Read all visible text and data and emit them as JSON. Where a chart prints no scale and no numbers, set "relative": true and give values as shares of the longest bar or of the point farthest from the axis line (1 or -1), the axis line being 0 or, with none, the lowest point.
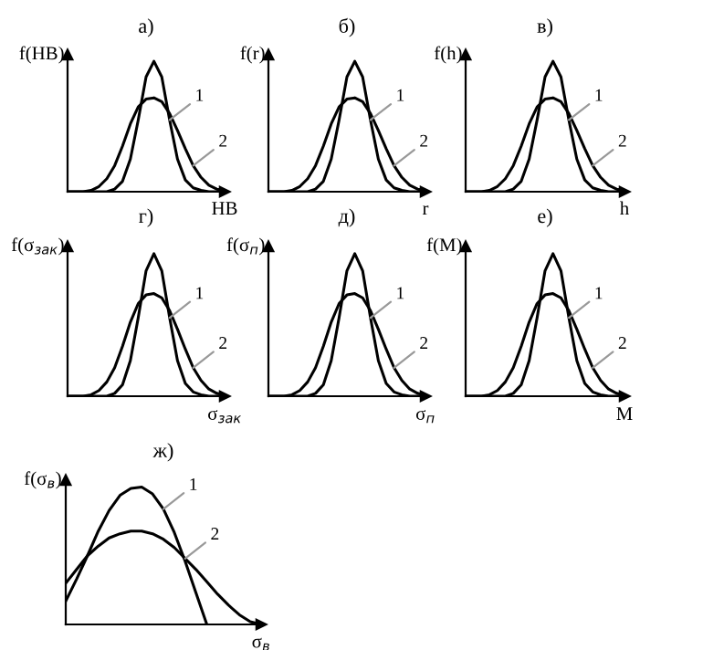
{
  "chart_data": [
    {
      "type": "line",
      "title": "а)",
      "ylabel": "f(HB)",
      "xlabel": "HB",
      "relative": true,
      "legend": false,
      "tick_labels": false,
      "categories": [
        null,
        null,
        null,
        null,
        null,
        null,
        null,
        null,
        null,
        null,
        null,
        null,
        null,
        null,
        null,
        null,
        null,
        null,
        null,
        null,
        null
      ],
      "series": [
        {
          "name": "1",
          "color": "#000000",
          "values": [
            0,
            0,
            0,
            0,
            0,
            0,
            0.02,
            0.08,
            0.25,
            0.55,
            0.88,
            1.0,
            0.88,
            0.55,
            0.25,
            0.09,
            0.03,
            0.01,
            0,
            0,
            0
          ]
        },
        {
          "name": "2",
          "color": "#000000",
          "values": [
            0,
            0,
            0,
            0.01,
            0.04,
            0.1,
            0.2,
            0.35,
            0.52,
            0.65,
            0.71,
            0.72,
            0.69,
            0.6,
            0.47,
            0.33,
            0.2,
            0.11,
            0.05,
            0.02,
            0.01
          ]
        }
      ]
    },
    {
      "type": "line",
      "title": "б)",
      "ylabel": "f(r)",
      "xlabel": "r",
      "relative": true,
      "legend": false,
      "tick_labels": false,
      "categories": [
        null,
        null,
        null,
        null,
        null,
        null,
        null,
        null,
        null,
        null,
        null,
        null,
        null,
        null,
        null,
        null,
        null,
        null,
        null,
        null,
        null
      ],
      "series": [
        {
          "name": "1",
          "color": "#000000",
          "values": [
            0,
            0,
            0,
            0,
            0,
            0,
            0.02,
            0.08,
            0.25,
            0.55,
            0.88,
            1.0,
            0.88,
            0.55,
            0.25,
            0.09,
            0.03,
            0.01,
            0,
            0,
            0
          ]
        },
        {
          "name": "2",
          "color": "#000000",
          "values": [
            0,
            0,
            0,
            0.01,
            0.04,
            0.1,
            0.2,
            0.35,
            0.52,
            0.65,
            0.71,
            0.72,
            0.69,
            0.6,
            0.47,
            0.33,
            0.2,
            0.11,
            0.05,
            0.02,
            0.01
          ]
        }
      ]
    },
    {
      "type": "line",
      "title": "в)",
      "ylabel": "f(h)",
      "xlabel": "h",
      "relative": true,
      "legend": false,
      "tick_labels": false,
      "categories": [
        null,
        null,
        null,
        null,
        null,
        null,
        null,
        null,
        null,
        null,
        null,
        null,
        null,
        null,
        null,
        null,
        null,
        null,
        null,
        null,
        null
      ],
      "series": [
        {
          "name": "1",
          "color": "#000000",
          "values": [
            0,
            0,
            0,
            0,
            0,
            0,
            0.02,
            0.08,
            0.25,
            0.55,
            0.88,
            1.0,
            0.88,
            0.55,
            0.25,
            0.09,
            0.03,
            0.01,
            0,
            0,
            0
          ]
        },
        {
          "name": "2",
          "color": "#000000",
          "values": [
            0,
            0,
            0,
            0.01,
            0.04,
            0.1,
            0.2,
            0.35,
            0.52,
            0.65,
            0.71,
            0.72,
            0.69,
            0.6,
            0.47,
            0.33,
            0.2,
            0.11,
            0.05,
            0.02,
            0.01
          ]
        }
      ]
    },
    {
      "type": "line",
      "title": "г)",
      "ylabel": "f(σ$_{зак}$)",
      "xlabel": "σ$_{зак}$",
      "relative": true,
      "legend": false,
      "tick_labels": false,
      "categories": [
        null,
        null,
        null,
        null,
        null,
        null,
        null,
        null,
        null,
        null,
        null,
        null,
        null,
        null,
        null,
        null,
        null,
        null,
        null,
        null,
        null
      ],
      "series": [
        {
          "name": "1",
          "color": "#000000",
          "values": [
            0,
            0,
            0,
            0,
            0,
            0,
            0.02,
            0.08,
            0.25,
            0.55,
            0.88,
            1.0,
            0.88,
            0.55,
            0.25,
            0.09,
            0.03,
            0.01,
            0,
            0,
            0
          ]
        },
        {
          "name": "2",
          "color": "#000000",
          "values": [
            0,
            0,
            0,
            0.01,
            0.04,
            0.1,
            0.2,
            0.35,
            0.52,
            0.65,
            0.71,
            0.72,
            0.69,
            0.6,
            0.47,
            0.33,
            0.2,
            0.11,
            0.05,
            0.02,
            0.01
          ]
        }
      ]
    },
    {
      "type": "line",
      "title": "д)",
      "ylabel": "f(σ$_{п}$)",
      "xlabel": "σ$_{п}$",
      "relative": true,
      "legend": false,
      "tick_labels": false,
      "categories": [
        null,
        null,
        null,
        null,
        null,
        null,
        null,
        null,
        null,
        null,
        null,
        null,
        null,
        null,
        null,
        null,
        null,
        null,
        null,
        null,
        null
      ],
      "series": [
        {
          "name": "1",
          "color": "#000000",
          "values": [
            0,
            0,
            0,
            0,
            0,
            0,
            0.02,
            0.08,
            0.25,
            0.55,
            0.88,
            1.0,
            0.88,
            0.55,
            0.25,
            0.09,
            0.03,
            0.01,
            0,
            0,
            0
          ]
        },
        {
          "name": "2",
          "color": "#000000",
          "values": [
            0,
            0,
            0,
            0.01,
            0.04,
            0.1,
            0.2,
            0.35,
            0.52,
            0.65,
            0.71,
            0.72,
            0.69,
            0.6,
            0.47,
            0.33,
            0.2,
            0.11,
            0.05,
            0.02,
            0.01
          ]
        }
      ]
    },
    {
      "type": "line",
      "title": "е)",
      "ylabel": "f(M)",
      "xlabel": "M",
      "relative": true,
      "legend": false,
      "tick_labels": false,
      "categories": [
        null,
        null,
        null,
        null,
        null,
        null,
        null,
        null,
        null,
        null,
        null,
        null,
        null,
        null,
        null,
        null,
        null,
        null,
        null,
        null,
        null
      ],
      "series": [
        {
          "name": "1",
          "color": "#000000",
          "values": [
            0,
            0,
            0,
            0,
            0,
            0,
            0.02,
            0.08,
            0.25,
            0.55,
            0.88,
            1.0,
            0.88,
            0.55,
            0.25,
            0.09,
            0.03,
            0.01,
            0,
            0,
            0
          ]
        },
        {
          "name": "2",
          "color": "#000000",
          "values": [
            0,
            0,
            0,
            0.01,
            0.04,
            0.1,
            0.2,
            0.35,
            0.52,
            0.65,
            0.71,
            0.72,
            0.69,
            0.6,
            0.47,
            0.33,
            0.2,
            0.11,
            0.05,
            0.02,
            0.01
          ]
        }
      ]
    },
    {
      "type": "line",
      "title": "ж)",
      "ylabel": "f(σ$_{в}$)",
      "xlabel": "σ$_{в}$",
      "relative": true,
      "legend": false,
      "tick_labels": false,
      "categories": [
        null,
        null,
        null,
        null,
        null,
        null,
        null,
        null,
        null,
        null,
        null,
        null,
        null,
        null,
        null,
        null,
        null,
        null,
        null,
        null,
        null
      ],
      "series": [
        {
          "name": "1",
          "color": "#000000",
          "values": [
            0.17,
            0.33,
            0.5,
            0.68,
            0.83,
            0.94,
            0.99,
            1.0,
            0.95,
            0.84,
            0.67,
            0.46,
            0.23,
            0,
            null,
            null,
            null,
            null,
            null,
            null,
            null
          ]
        },
        {
          "name": "2",
          "color": "#000000",
          "values": [
            0.3,
            0.4,
            0.5,
            0.57,
            0.63,
            0.66,
            0.68,
            0.68,
            0.66,
            0.62,
            0.56,
            0.48,
            0.4,
            0.31,
            0.22,
            0.14,
            0.07,
            0.02,
            0,
            null,
            null
          ]
        }
      ]
    }
  ]
}
